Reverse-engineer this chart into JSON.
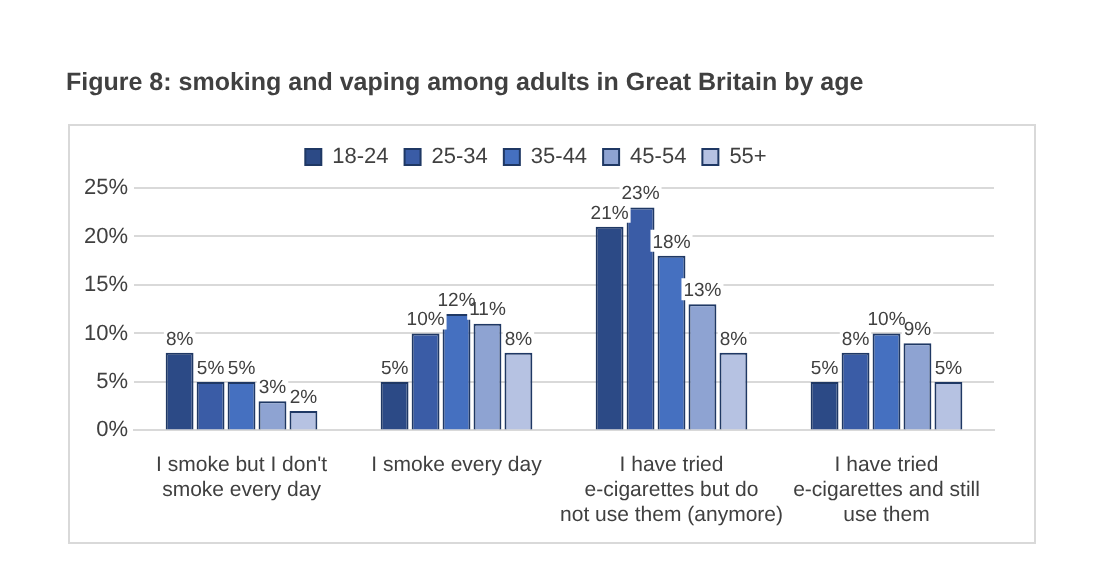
{
  "chart_data": {
    "type": "bar",
    "title": "Figure 8: smoking and vaping among adults in Great Britain by age",
    "categories": [
      "I smoke but I don't smoke every day",
      "I smoke every day",
      "I have tried e-cigarettes but do not use them (anymore)",
      "I have tried e-cigarettes and still use them"
    ],
    "series": [
      {
        "name": "18-24",
        "color": "#2c4a86",
        "values": [
          8,
          5,
          21,
          5
        ],
        "value_labels": [
          "8%",
          "5%",
          "21%",
          "5%"
        ]
      },
      {
        "name": "25-34",
        "color": "#3a5ca6",
        "values": [
          5,
          10,
          23,
          8
        ],
        "value_labels": [
          "5%",
          "10%",
          "23%",
          "8%"
        ]
      },
      {
        "name": "35-44",
        "color": "#4570c0",
        "values": [
          5,
          12,
          18,
          10
        ],
        "value_labels": [
          "5%",
          "12%",
          "18%",
          "10%"
        ]
      },
      {
        "name": "45-54",
        "color": "#8ea3d2",
        "values": [
          3,
          11,
          13,
          9
        ],
        "value_labels": [
          "3%",
          "11%",
          "13%",
          "9%"
        ]
      },
      {
        "name": "55+",
        "color": "#b6c2e2",
        "values": [
          2,
          8,
          8,
          5
        ],
        "value_labels": [
          "2%",
          "8%",
          "8%",
          "5%"
        ]
      }
    ],
    "ylim": [
      0,
      25
    ],
    "yticks": [
      {
        "value": 0,
        "label": "0%"
      },
      {
        "value": 5,
        "label": "5%"
      },
      {
        "value": 10,
        "label": "10%"
      },
      {
        "value": 15,
        "label": "15%"
      },
      {
        "value": 20,
        "label": "20%"
      },
      {
        "value": 25,
        "label": "25%"
      }
    ],
    "grid": "y",
    "legend": "top"
  }
}
